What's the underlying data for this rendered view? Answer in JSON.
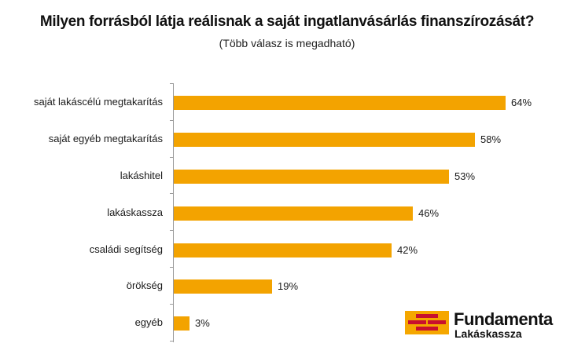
{
  "title": "Milyen forrásból látja reálisnak a saját  ingatlanvásárlás finanszírozását?",
  "subtitle": "(Több válasz is megadható)",
  "logo": {
    "brand": "Fundamenta",
    "sub": "Lakáskassza",
    "colors": {
      "background": "#f5a700",
      "bricks": "#c8102e"
    }
  },
  "chart_data": {
    "type": "bar",
    "orientation": "horizontal",
    "title": "Milyen forrásból látja reálisnak a saját  ingatlanvásárlás finanszírozását?",
    "subtitle": "(Több válasz is megadható)",
    "categories": [
      "saját lakáscélú megtakarítás",
      "saját egyéb megtakarítás",
      "lakáshitel",
      "lakáskassza",
      "családi segítség",
      "örökség",
      "egyéb"
    ],
    "values": [
      64,
      58,
      53,
      46,
      42,
      19,
      3
    ],
    "value_labels": [
      "64%",
      "58%",
      "53%",
      "46%",
      "42%",
      "19%",
      "3%"
    ],
    "xlabel": "",
    "ylabel": "",
    "unit": "%",
    "grid": false,
    "legend": null,
    "bar_color": "#f3a300"
  }
}
